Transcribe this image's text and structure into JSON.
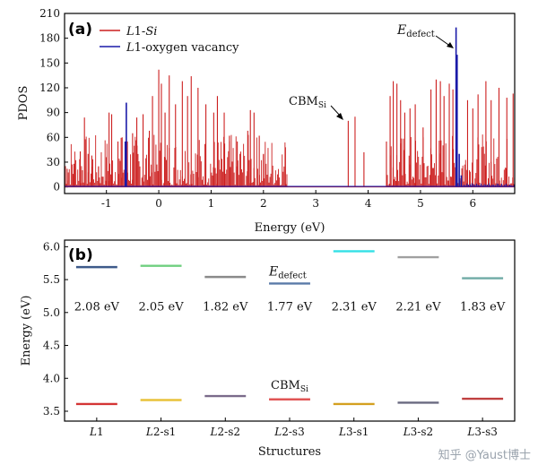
{
  "colors": {
    "red": "#cc1f1f",
    "blue": "#1a1aa8"
  },
  "chart_data": [
    {
      "type": "line",
      "panel_label": "(a)",
      "xlabel": "Energy (eV)",
      "ylabel": "PDOS",
      "xlim": [
        -1.8,
        6.8
      ],
      "ylim": [
        -8,
        210
      ],
      "x_ticks": [
        -1,
        0,
        1,
        2,
        3,
        4,
        5,
        6
      ],
      "y_ticks": [
        0,
        30,
        60,
        90,
        120,
        150,
        180,
        210
      ],
      "legend": {
        "position": "top-left",
        "entries": [
          {
            "prefix": "L",
            "mid": "1-",
            "suffix": "Si",
            "suffix_italic": true,
            "color": "#cc1f1f"
          },
          {
            "prefix": "L",
            "mid": "1-oxygen vacancy",
            "suffix": "",
            "suffix_italic": false,
            "color": "#1a1aa8"
          }
        ]
      },
      "annotations": {
        "defect": {
          "main": "E",
          "sub": "defect",
          "x": 5.68,
          "y": 193
        },
        "cbm": {
          "main": "CBM",
          "sub": "Si",
          "x": 3.62,
          "y": 80
        }
      },
      "series": [
        {
          "name": "L1-Si",
          "color": "#cc1f1f",
          "valence_band": [
            -1.8,
            2.45
          ],
          "conduction_band": [
            4.35,
            6.8
          ],
          "peaks": [
            [
              -1.75,
              22
            ],
            [
              -1.62,
              28
            ],
            [
              -1.5,
              43
            ],
            [
              -1.42,
              84
            ],
            [
              -1.35,
              40
            ],
            [
              -1.28,
              38
            ],
            [
              -1.15,
              25
            ],
            [
              -1.0,
              36
            ],
            [
              -0.95,
              90
            ],
            [
              -0.9,
              88
            ],
            [
              -0.78,
              55
            ],
            [
              -0.7,
              60
            ],
            [
              -0.6,
              55
            ],
            [
              -0.5,
              65
            ],
            [
              -0.42,
              84
            ],
            [
              -0.3,
              88
            ],
            [
              -0.18,
              68
            ],
            [
              -0.12,
              110
            ],
            [
              0.0,
              142
            ],
            [
              0.05,
              125
            ],
            [
              0.12,
              90
            ],
            [
              0.2,
              135
            ],
            [
              0.32,
              100
            ],
            [
              0.45,
              128
            ],
            [
              0.55,
              110
            ],
            [
              0.62,
              134
            ],
            [
              0.75,
              120
            ],
            [
              0.9,
              100
            ],
            [
              1.05,
              90
            ],
            [
              1.12,
              110
            ],
            [
              1.25,
              90
            ],
            [
              1.35,
              62
            ],
            [
              1.5,
              55
            ],
            [
              1.7,
              68
            ],
            [
              1.75,
              93
            ],
            [
              1.82,
              90
            ],
            [
              1.92,
              62
            ],
            [
              2.0,
              40
            ],
            [
              2.42,
              48
            ],
            [
              3.62,
              80
            ],
            [
              3.75,
              85
            ],
            [
              3.92,
              42
            ],
            [
              4.35,
              55
            ],
            [
              4.42,
              110
            ],
            [
              4.48,
              128
            ],
            [
              4.55,
              125
            ],
            [
              4.62,
              105
            ],
            [
              4.7,
              90
            ],
            [
              4.8,
              95
            ],
            [
              4.9,
              100
            ],
            [
              5.05,
              72
            ],
            [
              5.2,
              118
            ],
            [
              5.3,
              130
            ],
            [
              5.38,
              128
            ],
            [
              5.45,
              110
            ],
            [
              5.55,
              125
            ],
            [
              5.62,
              118
            ],
            [
              5.9,
              105
            ],
            [
              6.0,
              95
            ],
            [
              6.1,
              112
            ],
            [
              6.25,
              128
            ],
            [
              6.35,
              105
            ],
            [
              6.5,
              120
            ],
            [
              6.65,
              108
            ],
            [
              6.77,
              113
            ]
          ]
        },
        {
          "name": "L1-oxygen vacancy",
          "color": "#1a1aa8",
          "peaks": [
            [
              -0.62,
              102
            ],
            [
              -0.64,
              55
            ],
            [
              5.68,
              193
            ],
            [
              5.7,
              160
            ],
            [
              5.74,
              40
            ],
            [
              5.78,
              14
            ]
          ]
        }
      ]
    },
    {
      "type": "scatter",
      "panel_label": "(b)",
      "xlabel": "Structures",
      "ylabel": "Energy (eV)",
      "ylim": [
        3.35,
        6.1
      ],
      "y_ticks": [
        3.5,
        4.0,
        4.5,
        5.0,
        5.5,
        6.0
      ],
      "categories": [
        {
          "label": "L1",
          "italic": "L",
          "rest": "1"
        },
        {
          "label": "L2-s1",
          "italic": "L",
          "rest": "2-s1"
        },
        {
          "label": "L2-s2",
          "italic": "L",
          "rest": "2-s2"
        },
        {
          "label": "L2-s3",
          "italic": "L",
          "rest": "2-s3"
        },
        {
          "label": "L3-s1",
          "italic": "L",
          "rest": "3-s1"
        },
        {
          "label": "L3-s2",
          "italic": "L",
          "rest": "3-s2"
        },
        {
          "label": "L3-s3",
          "italic": "L",
          "rest": "3-s3"
        }
      ],
      "series": [
        {
          "name": "E_defect",
          "values": [
            5.69,
            5.71,
            5.54,
            5.44,
            5.93,
            5.84,
            5.52
          ],
          "colors": [
            "#3d5a8a",
            "#6fcf7f",
            "#8a8a8a",
            "#5a7aa8",
            "#33e0e6",
            "#a0a0a0",
            "#6faaa5"
          ]
        },
        {
          "name": "CBM_Si",
          "values": [
            3.61,
            3.67,
            3.73,
            3.68,
            3.61,
            3.63,
            3.69
          ],
          "colors": [
            "#d43535",
            "#e8c23a",
            "#7a6a8a",
            "#e05555",
            "#d4a020",
            "#6a6a80",
            "#c04040"
          ]
        }
      ],
      "gap_labels": [
        "2.08 eV",
        "2.05 eV",
        "1.82 eV",
        "1.77 eV",
        "2.31 eV",
        "2.21 eV",
        "1.83 eV"
      ],
      "gap_label_y": 5.1,
      "annotations": {
        "defect": {
          "main": "E",
          "sub": "defect",
          "y": 5.56
        },
        "cbm": {
          "main": "CBM",
          "sub": "Si",
          "y": 3.84
        }
      }
    }
  ],
  "watermark": "知乎 @Yaust博士"
}
